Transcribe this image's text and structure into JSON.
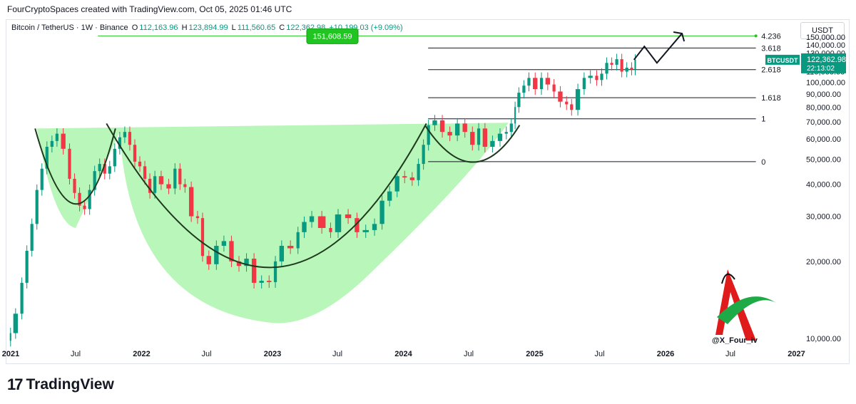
{
  "header": {
    "attribution": "FourCryptoSpaces created with TradingView.com, Oct 05, 2025 01:46 UTC"
  },
  "legend": {
    "symbol": "Bitcoin / TetherUS · 1W · Binance",
    "o_label": "O",
    "o_value": "112,163.96",
    "h_label": "H",
    "h_value": "123,894.99",
    "l_label": "L",
    "l_value": "111,560.65",
    "c_label": "C",
    "c_value": "122,362.98",
    "change": "+10,199.03 (+9.09%)"
  },
  "currency": "USDT",
  "price_tag": {
    "symbol": "BTCUSDT",
    "price": "122,362.98",
    "countdown": "22:13:02"
  },
  "target_label": "151,608.59",
  "footer": {
    "brand": "TradingView"
  },
  "watermark": {
    "handle": "@X_Four_iv"
  },
  "colors": {
    "up": "#089981",
    "down": "#f23645",
    "fill": "#b9f6b9",
    "target": "#21c521"
  },
  "chart_data": {
    "type": "candlestick",
    "y_axis": {
      "scale": "log",
      "range": [
        8000,
        175000
      ],
      "ticks": [
        "150,000.00",
        "140,000.00",
        "130,000.00",
        "120,000.00",
        "110,000.00",
        "100,000.00",
        "90,000.00",
        "80,000.00",
        "70,000.00",
        "60,000.00",
        "50,000.00",
        "40,000.00",
        "30,000.00",
        "20,000.00",
        "10,000.00"
      ]
    },
    "x_axis": {
      "ticks": [
        "2021",
        "Jul",
        "2022",
        "Jul",
        "2023",
        "Jul",
        "2024",
        "Jul",
        "2025",
        "Jul",
        "2026",
        "Jul",
        "2027"
      ]
    },
    "fib_levels": [
      {
        "label": "4.236",
        "price": 151608.59
      },
      {
        "label": "3.618",
        "price": 136000
      },
      {
        "label": "2.618",
        "price": 112000
      },
      {
        "label": "1.618",
        "price": 87000
      },
      {
        "label": "1",
        "price": 72000
      },
      {
        "label": "0",
        "price": 49000
      }
    ],
    "series": [
      {
        "values": [
          [
            "2020-12-28",
            9800,
            10500
          ],
          [
            "2021-01-04",
            10500,
            12500
          ],
          [
            "2021-01-25",
            12500,
            16500
          ],
          [
            "2021-02-08",
            16500,
            22000
          ],
          [
            "2021-02-22",
            22000,
            28000
          ],
          [
            "2021-03-08",
            28000,
            38000
          ],
          [
            "2021-03-22",
            38000,
            46000
          ],
          [
            "2021-04-05",
            46000,
            56000
          ],
          [
            "2021-04-19",
            56000,
            59000
          ],
          [
            "2021-05-03",
            59000,
            63000
          ],
          [
            "2021-05-17",
            63000,
            55000
          ],
          [
            "2021-06-07",
            55000,
            42000
          ],
          [
            "2021-06-21",
            42000,
            37000
          ],
          [
            "2021-07-05",
            37000,
            33000
          ],
          [
            "2021-07-19",
            33000,
            32000
          ],
          [
            "2021-08-02",
            32000,
            38000
          ],
          [
            "2021-08-16",
            38000,
            45000
          ],
          [
            "2021-08-30",
            45000,
            48000
          ],
          [
            "2021-09-13",
            48000,
            44000
          ],
          [
            "2021-09-27",
            44000,
            47000
          ],
          [
            "2021-10-11",
            47000,
            55000
          ],
          [
            "2021-10-25",
            55000,
            61000
          ],
          [
            "2021-11-08",
            61000,
            64000
          ],
          [
            "2021-11-22",
            64000,
            57000
          ],
          [
            "2021-12-06",
            57000,
            49000
          ],
          [
            "2021-12-20",
            49000,
            47000
          ],
          [
            "2022-01-03",
            47000,
            42000
          ],
          [
            "2022-01-17",
            42000,
            37000
          ],
          [
            "2022-01-31",
            37000,
            43000
          ],
          [
            "2022-02-14",
            43000,
            40000
          ],
          [
            "2022-03-07",
            40000,
            38500
          ],
          [
            "2022-03-28",
            38500,
            46000
          ],
          [
            "2022-04-11",
            46000,
            40000
          ],
          [
            "2022-04-25",
            40000,
            39000
          ],
          [
            "2022-05-09",
            39000,
            30000
          ],
          [
            "2022-05-30",
            30000,
            29500
          ],
          [
            "2022-06-13",
            29500,
            21000
          ],
          [
            "2022-06-27",
            21000,
            19500
          ],
          [
            "2022-07-18",
            19500,
            23000
          ],
          [
            "2022-08-08",
            23000,
            24000
          ],
          [
            "2022-08-29",
            24000,
            20000
          ],
          [
            "2022-09-19",
            20000,
            19200
          ],
          [
            "2022-10-10",
            19200,
            20500
          ],
          [
            "2022-10-31",
            20500,
            16500
          ],
          [
            "2022-11-21",
            16500,
            16800
          ],
          [
            "2022-12-12",
            16800,
            16600
          ],
          [
            "2023-01-02",
            16600,
            20000
          ],
          [
            "2023-01-16",
            20000,
            23000
          ],
          [
            "2023-02-06",
            23000,
            22500
          ],
          [
            "2023-03-06",
            22500,
            26000
          ],
          [
            "2023-03-20",
            26000,
            28500
          ],
          [
            "2023-04-10",
            28500,
            30000
          ],
          [
            "2023-05-01",
            30000,
            27000
          ],
          [
            "2023-06-05",
            27000,
            26000
          ],
          [
            "2023-06-19",
            26000,
            30500
          ],
          [
            "2023-07-17",
            30500,
            29500
          ],
          [
            "2023-08-14",
            29500,
            26000
          ],
          [
            "2023-09-04",
            26000,
            26500
          ],
          [
            "2023-10-02",
            26500,
            28000
          ],
          [
            "2023-10-23",
            28000,
            34500
          ],
          [
            "2023-11-13",
            34500,
            37500
          ],
          [
            "2023-12-04",
            37500,
            43000
          ],
          [
            "2023-12-25",
            43000,
            42500
          ],
          [
            "2024-01-15",
            42500,
            41500
          ],
          [
            "2024-02-05",
            41500,
            48000
          ],
          [
            "2024-02-19",
            48000,
            57000
          ],
          [
            "2024-03-04",
            57000,
            68000
          ],
          [
            "2024-03-18",
            68000,
            71000
          ],
          [
            "2024-04-08",
            71000,
            64000
          ],
          [
            "2024-04-29",
            64000,
            62000
          ],
          [
            "2024-05-20",
            62000,
            69000
          ],
          [
            "2024-06-10",
            69000,
            64000
          ],
          [
            "2024-07-01",
            64000,
            57000
          ],
          [
            "2024-07-22",
            57000,
            66000
          ],
          [
            "2024-08-05",
            66000,
            56000
          ],
          [
            "2024-08-26",
            56000,
            59000
          ],
          [
            "2024-09-16",
            59000,
            63000
          ],
          [
            "2024-10-07",
            63000,
            64000
          ],
          [
            "2024-10-21",
            64000,
            69000
          ],
          [
            "2024-11-04",
            69000,
            80000
          ],
          [
            "2024-11-11",
            80000,
            91000
          ],
          [
            "2024-11-25",
            91000,
            97000
          ],
          [
            "2024-12-09",
            97000,
            104000
          ],
          [
            "2024-12-23",
            104000,
            94000
          ],
          [
            "2025-01-13",
            94000,
            104000
          ],
          [
            "2025-01-27",
            104000,
            98000
          ],
          [
            "2025-02-17",
            98000,
            92000
          ],
          [
            "2025-03-03",
            92000,
            84000
          ],
          [
            "2025-03-24",
            84000,
            82000
          ],
          [
            "2025-04-07",
            82000,
            78000
          ],
          [
            "2025-04-21",
            78000,
            94000
          ],
          [
            "2025-05-12",
            94000,
            104000
          ],
          [
            "2025-05-26",
            104000,
            106000
          ],
          [
            "2025-06-16",
            106000,
            102000
          ],
          [
            "2025-06-30",
            102000,
            108000
          ],
          [
            "2025-07-14",
            108000,
            119000
          ],
          [
            "2025-07-28",
            119000,
            117000
          ],
          [
            "2025-08-11",
            117000,
            123000
          ],
          [
            "2025-08-25",
            123000,
            110000
          ],
          [
            "2025-09-08",
            110000,
            114000
          ],
          [
            "2025-09-22",
            114000,
            112000
          ],
          [
            "2025-10-05",
            112164,
            122363
          ]
        ]
      }
    ],
    "projection_path": [
      [
        "2025-10-05",
        122363
      ],
      [
        "2025-11-03",
        138000
      ],
      [
        "2025-12-08",
        119000
      ],
      [
        "2026-02-16",
        155000
      ]
    ],
    "patterns": [
      "large cup (2021–2024)",
      "handle",
      "second cup 2024"
    ]
  }
}
